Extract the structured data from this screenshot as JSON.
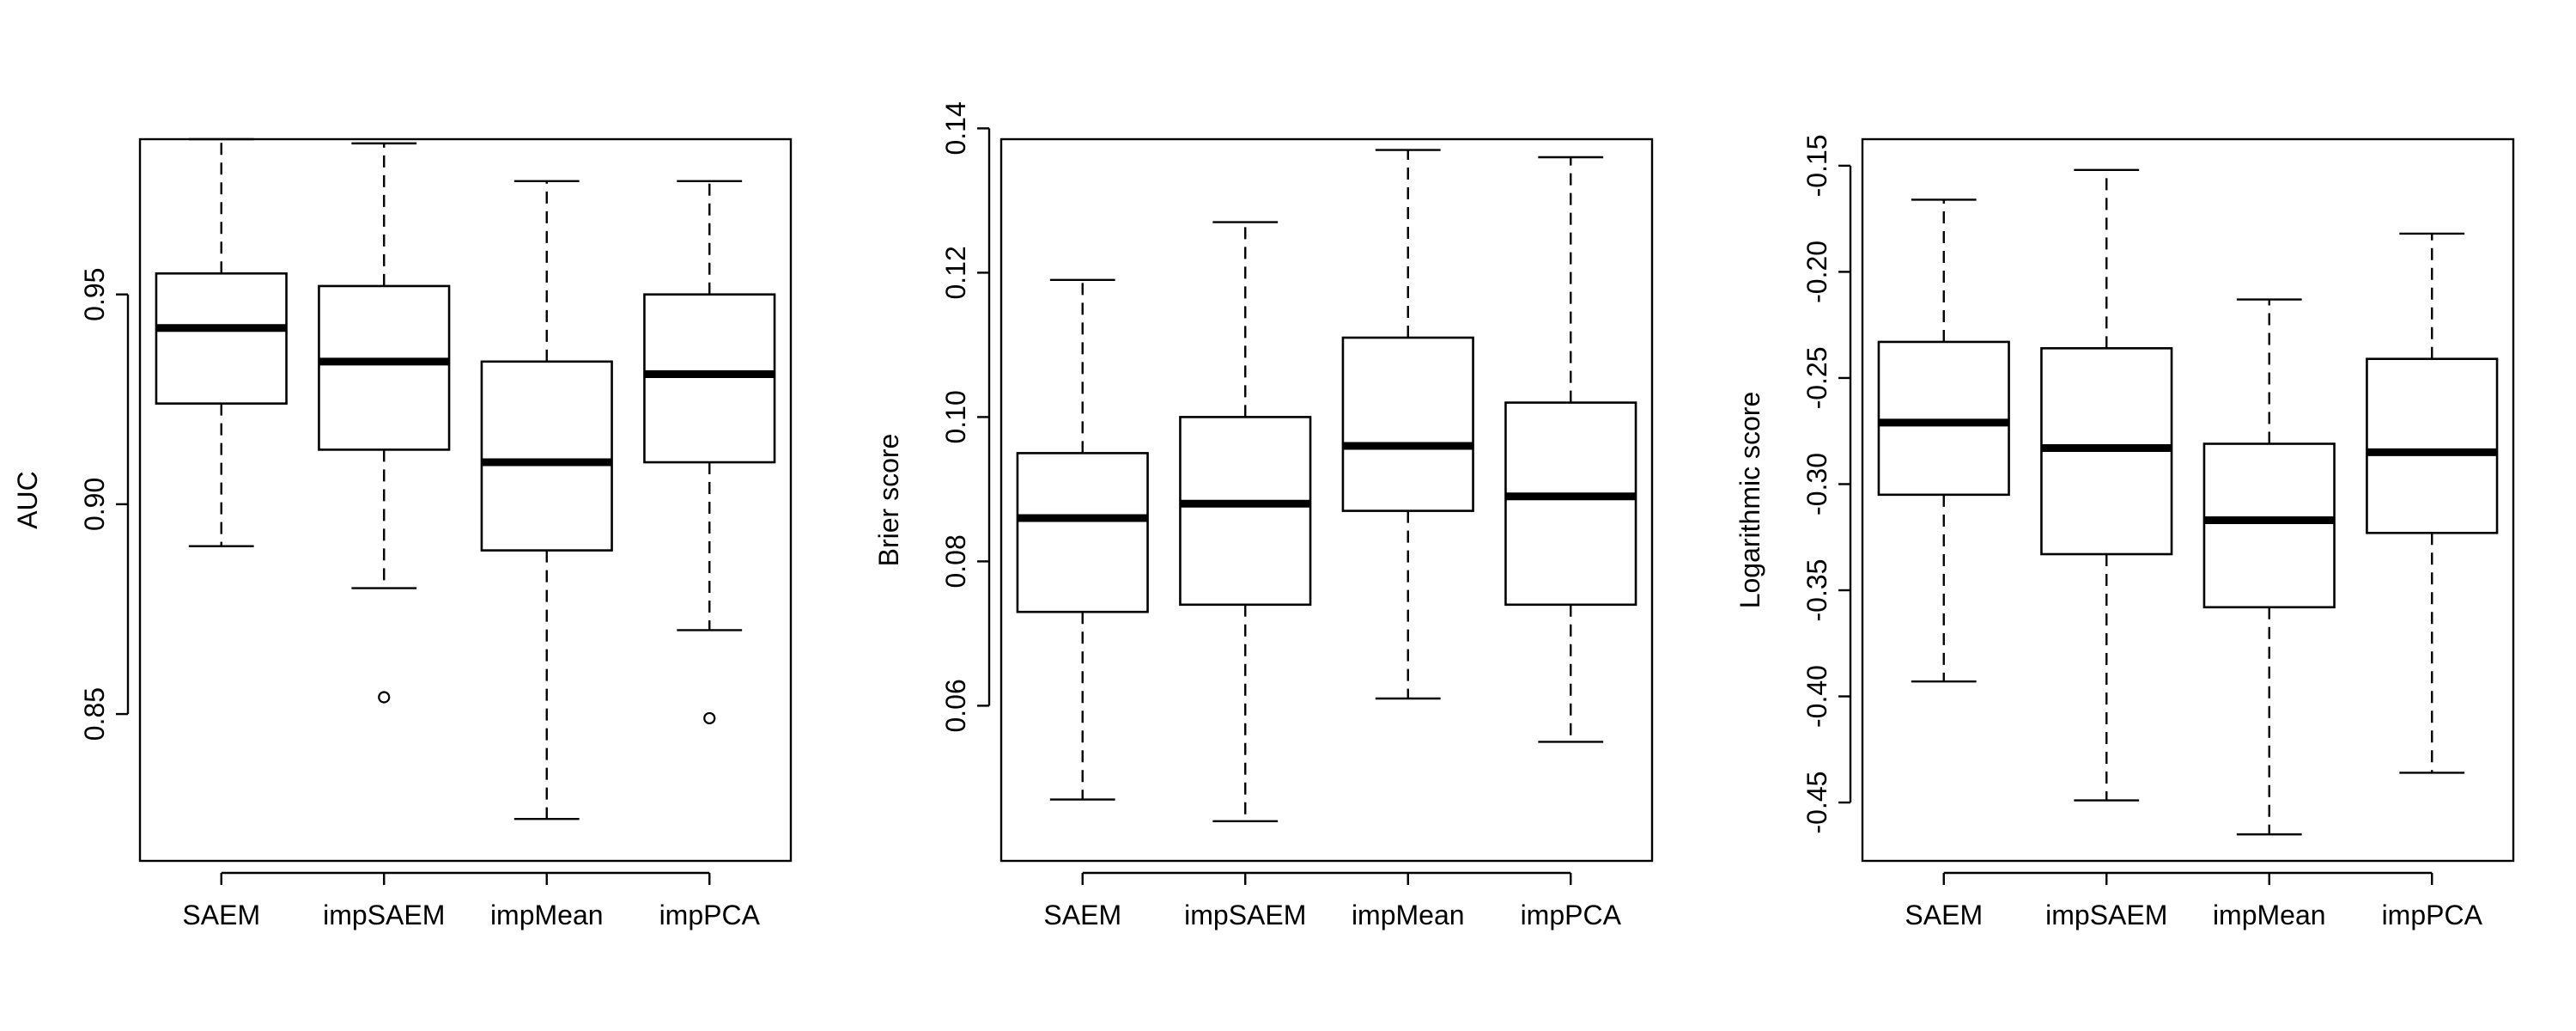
{
  "chart_data": [
    {
      "type": "boxplot",
      "ylabel": "AUC",
      "categories": [
        "SAEM",
        "impSAEM",
        "impMean",
        "impPCA"
      ],
      "ylim": [
        0.815,
        0.987
      ],
      "yticks": [
        0.85,
        0.9,
        0.95
      ],
      "ytick_labels": [
        "0.85",
        "0.90",
        "0.95"
      ],
      "boxes": [
        {
          "whisker_low": 0.89,
          "q1": 0.924,
          "median": 0.942,
          "q3": 0.955,
          "whisker_high": 0.987,
          "outliers": []
        },
        {
          "whisker_low": 0.88,
          "q1": 0.913,
          "median": 0.934,
          "q3": 0.952,
          "whisker_high": 0.986,
          "outliers": [
            0.854
          ]
        },
        {
          "whisker_low": 0.825,
          "q1": 0.889,
          "median": 0.91,
          "q3": 0.934,
          "whisker_high": 0.977,
          "outliers": []
        },
        {
          "whisker_low": 0.87,
          "q1": 0.91,
          "median": 0.931,
          "q3": 0.95,
          "whisker_high": 0.977,
          "outliers": [
            0.849
          ]
        }
      ]
    },
    {
      "type": "boxplot",
      "ylabel": "Brier score",
      "categories": [
        "SAEM",
        "impSAEM",
        "impMean",
        "impPCA"
      ],
      "ylim": [
        0.0385,
        0.1385
      ],
      "yticks": [
        0.06,
        0.08,
        0.1,
        0.12,
        0.14
      ],
      "ytick_labels": [
        "0.06",
        "0.08",
        "0.10",
        "0.12",
        "0.14"
      ],
      "boxes": [
        {
          "whisker_low": 0.047,
          "q1": 0.073,
          "median": 0.086,
          "q3": 0.095,
          "whisker_high": 0.119,
          "outliers": []
        },
        {
          "whisker_low": 0.044,
          "q1": 0.074,
          "median": 0.088,
          "q3": 0.1,
          "whisker_high": 0.127,
          "outliers": []
        },
        {
          "whisker_low": 0.061,
          "q1": 0.087,
          "median": 0.096,
          "q3": 0.111,
          "whisker_high": 0.137,
          "outliers": []
        },
        {
          "whisker_low": 0.055,
          "q1": 0.074,
          "median": 0.089,
          "q3": 0.102,
          "whisker_high": 0.136,
          "outliers": []
        }
      ]
    },
    {
      "type": "boxplot",
      "ylabel": "Logarithmic score",
      "categories": [
        "SAEM",
        "impSAEM",
        "impMean",
        "impPCA"
      ],
      "ylim": [
        -0.4775,
        -0.1375
      ],
      "yticks": [
        -0.45,
        -0.4,
        -0.35,
        -0.3,
        -0.25,
        -0.2,
        -0.15
      ],
      "ytick_labels": [
        "-0.45",
        "-0.40",
        "-0.35",
        "-0.30",
        "-0.25",
        "-0.20",
        "-0.15"
      ],
      "boxes": [
        {
          "whisker_low": -0.393,
          "q1": -0.305,
          "median": -0.271,
          "q3": -0.233,
          "whisker_high": -0.166,
          "outliers": []
        },
        {
          "whisker_low": -0.449,
          "q1": -0.333,
          "median": -0.283,
          "q3": -0.236,
          "whisker_high": -0.152,
          "outliers": []
        },
        {
          "whisker_low": -0.465,
          "q1": -0.358,
          "median": -0.317,
          "q3": -0.281,
          "whisker_high": -0.213,
          "outliers": []
        },
        {
          "whisker_low": -0.436,
          "q1": -0.323,
          "median": -0.285,
          "q3": -0.241,
          "whisker_high": -0.182,
          "outliers": []
        }
      ]
    }
  ]
}
